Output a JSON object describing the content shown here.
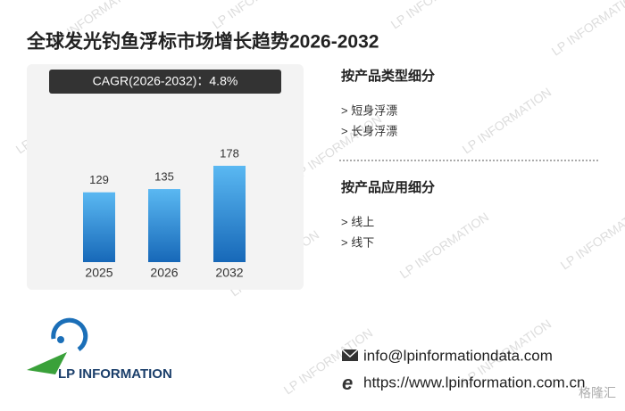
{
  "chart_data": {
    "type": "bar",
    "title": "全球发光钓鱼浮标市场增长趋势2026-2032",
    "subtitle": "CAGR(2026-2032)：4.8%",
    "categories": [
      "2025",
      "2026",
      "2032"
    ],
    "values": [
      129,
      135,
      178
    ],
    "color": "#2a86d6"
  },
  "sidebar": [
    {
      "title": "按产品类型细分",
      "items": [
        "> 短身浮漂",
        "> 长身浮漂"
      ]
    },
    {
      "title": "按产品应用细分",
      "items": [
        "> 线上",
        "> 线下"
      ]
    }
  ],
  "logo": "LP INFORMATION",
  "contact": {
    "email": "info@lpinformationdata.com",
    "website": "https://www.lpinformation.com.cn"
  },
  "watermark": "LP INFORMATION",
  "badge": "格隆汇"
}
